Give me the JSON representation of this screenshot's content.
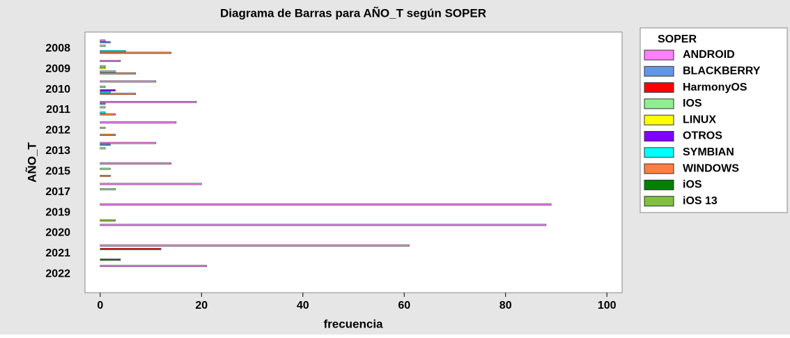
{
  "chart_data": {
    "type": "barh",
    "title": "Diagrama de Barras para AÑO_T según SOPER",
    "x_label": "frecuencia",
    "y_label": "AÑO_T",
    "legend_title": "SOPER",
    "categories": [
      "2008",
      "2009",
      "2010",
      "2011",
      "2012",
      "2013",
      "2015",
      "2017",
      "2019",
      "2020",
      "2021",
      "2022"
    ],
    "series": [
      {
        "name": "ANDROID",
        "color": "#ff80ff",
        "values": [
          1,
          4,
          11,
          19,
          15,
          11,
          14,
          20,
          89,
          88,
          61,
          21
        ]
      },
      {
        "name": "BLACKBERRY",
        "color": "#6495ed",
        "values": [
          2,
          0,
          0,
          1,
          0,
          2,
          0,
          0,
          0,
          0,
          0,
          0
        ]
      },
      {
        "name": "HarmonyOS",
        "color": "#ff0000",
        "values": [
          0,
          0,
          0,
          0,
          0,
          0,
          0,
          0,
          0,
          0,
          12,
          0
        ]
      },
      {
        "name": "IOS",
        "color": "#90ee90",
        "values": [
          1,
          1,
          1,
          1,
          1,
          1,
          2,
          3,
          0,
          0,
          0,
          0
        ]
      },
      {
        "name": "LINUX",
        "color": "#ffff00",
        "values": [
          0,
          1,
          0,
          0,
          0,
          0,
          0,
          0,
          0,
          0,
          0,
          0
        ]
      },
      {
        "name": "OTROS",
        "color": "#8000ff",
        "values": [
          0,
          0,
          3,
          0,
          0,
          0,
          0,
          0,
          0,
          0,
          0,
          0
        ]
      },
      {
        "name": "SYMBIAN",
        "color": "#00ffff",
        "values": [
          5,
          3,
          2,
          1,
          0,
          0,
          0,
          0,
          0,
          0,
          0,
          0
        ]
      },
      {
        "name": "WINDOWS",
        "color": "#ff8040",
        "values": [
          14,
          7,
          7,
          3,
          3,
          0,
          2,
          0,
          0,
          0,
          0,
          0
        ]
      },
      {
        "name": "iOS",
        "color": "#008000",
        "values": [
          0,
          0,
          0,
          0,
          0,
          0,
          0,
          0,
          0,
          0,
          4,
          0
        ]
      },
      {
        "name": "iOS 13",
        "color": "#80c040",
        "values": [
          0,
          0,
          0,
          0,
          0,
          0,
          0,
          0,
          3,
          0,
          0,
          0
        ]
      }
    ],
    "xlim": [
      -3,
      103
    ],
    "xticks": [
      0,
      20,
      40,
      60,
      80,
      100
    ],
    "legend": "right"
  }
}
